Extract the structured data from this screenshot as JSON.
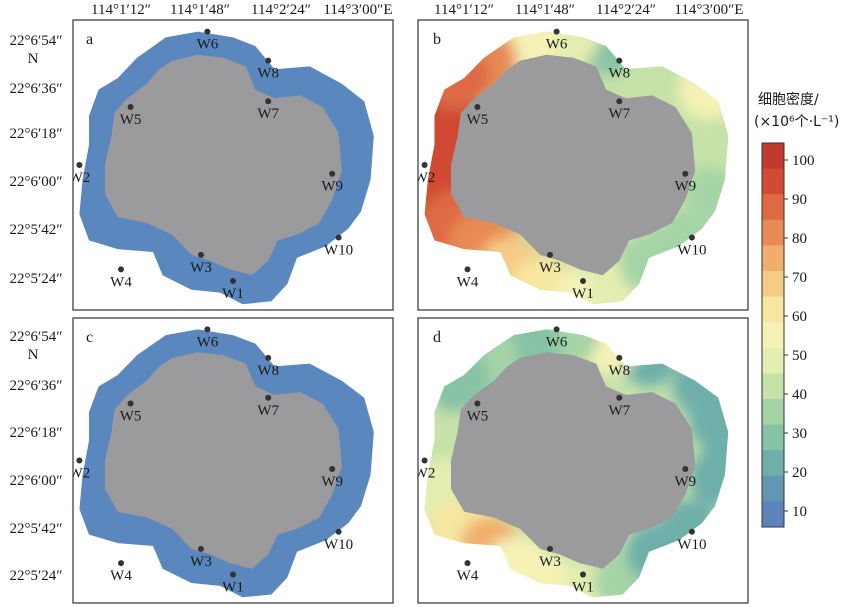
{
  "top_axis_labels": [
    "114°1′12″",
    "114°1′48″",
    "114°2′24″",
    "114°3′00″E"
  ],
  "left_axis_labels": [
    "22°6′54″",
    "N",
    "22°6′36″",
    "22°6′18″",
    "22°6′00″",
    "22°5′42″",
    "22°5′24″"
  ],
  "panels": [
    {
      "label": "a",
      "mode": "uniform"
    },
    {
      "label": "b",
      "mode": "high"
    },
    {
      "label": "c",
      "mode": "uniform"
    },
    {
      "label": "d",
      "mode": "moderate"
    }
  ],
  "stations": [
    {
      "name": "W1",
      "lng": 0.5,
      "lat": 0.1
    },
    {
      "name": "W2",
      "lng": 0.02,
      "lat": 0.5
    },
    {
      "name": "W3",
      "lng": 0.4,
      "lat": 0.19
    },
    {
      "name": "W4",
      "lng": 0.15,
      "lat": 0.14
    },
    {
      "name": "W5",
      "lng": 0.18,
      "lat": 0.7
    },
    {
      "name": "W6",
      "lng": 0.42,
      "lat": 0.96
    },
    {
      "name": "W7",
      "lng": 0.61,
      "lat": 0.72
    },
    {
      "name": "W8",
      "lng": 0.61,
      "lat": 0.86
    },
    {
      "name": "W9",
      "lng": 0.81,
      "lat": 0.47
    },
    {
      "name": "W10",
      "lng": 0.83,
      "lat": 0.25
    }
  ],
  "colorbar": {
    "title_line1": "细胞密度/",
    "title_line2": "(×10⁶个·L⁻¹)",
    "ticks": [
      "100",
      "90",
      "80",
      "70",
      "60",
      "50",
      "40",
      "30",
      "20",
      "10"
    ],
    "colors": [
      "#c23a2c",
      "#d14a33",
      "#de6a44",
      "#e88a55",
      "#f0ae6c",
      "#f4cc86",
      "#f6e6a0",
      "#f6f2b6",
      "#e3eeb1",
      "#c6e2a8",
      "#a4d4a6",
      "#86c3a5",
      "#6eafaa",
      "#6197b2",
      "#5e83ba"
    ]
  },
  "land_color": "#9b9a9c",
  "uniform_color": "#5b87bf"
}
